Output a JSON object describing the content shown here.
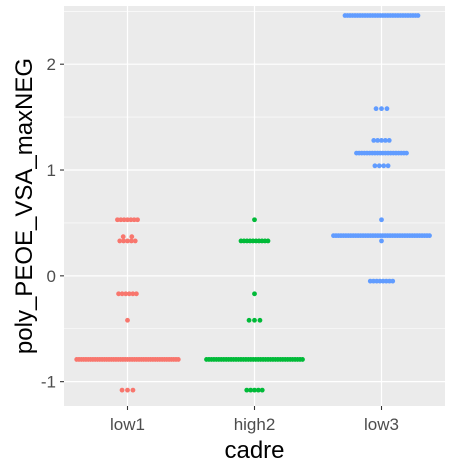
{
  "chart_data": {
    "type": "scatter",
    "subtype": "jittered strip plot",
    "xlabel": "cadre",
    "ylabel": "poly_PEOE_VSA_maxNEG",
    "categories": [
      "low1",
      "high2",
      "low3"
    ],
    "ylim": [
      -1.23,
      2.55
    ],
    "yticks": [
      -1,
      0,
      1,
      2
    ],
    "grid": true,
    "legend": "none",
    "series": [
      {
        "category": "low1",
        "color": "#F8766D",
        "clusters": [
          {
            "y": 0.53,
            "n": 7
          },
          {
            "y": 0.37,
            "n": 2
          },
          {
            "y": 0.33,
            "n": 5
          },
          {
            "y": -0.17,
            "n": 6
          },
          {
            "y": -0.42,
            "n": 1
          },
          {
            "y": -0.79,
            "n": 45
          },
          {
            "y": -1.08,
            "n": 3
          }
        ]
      },
      {
        "category": "high2",
        "color": "#00BA38",
        "clusters": [
          {
            "y": 0.53,
            "n": 1
          },
          {
            "y": 0.33,
            "n": 10
          },
          {
            "y": -0.17,
            "n": 1
          },
          {
            "y": -0.42,
            "n": 3
          },
          {
            "y": -0.79,
            "n": 40
          },
          {
            "y": -1.08,
            "n": 5
          }
        ]
      },
      {
        "category": "low3",
        "color": "#619CFF",
        "clusters": [
          {
            "y": 2.46,
            "n": 30
          },
          {
            "y": 1.58,
            "n": 3
          },
          {
            "y": 1.28,
            "n": 5
          },
          {
            "y": 1.16,
            "n": 20
          },
          {
            "y": 1.04,
            "n": 4
          },
          {
            "y": 0.53,
            "n": 1
          },
          {
            "y": 0.38,
            "n": 40
          },
          {
            "y": 0.33,
            "n": 1
          },
          {
            "y": -0.05,
            "n": 8
          }
        ]
      }
    ]
  }
}
